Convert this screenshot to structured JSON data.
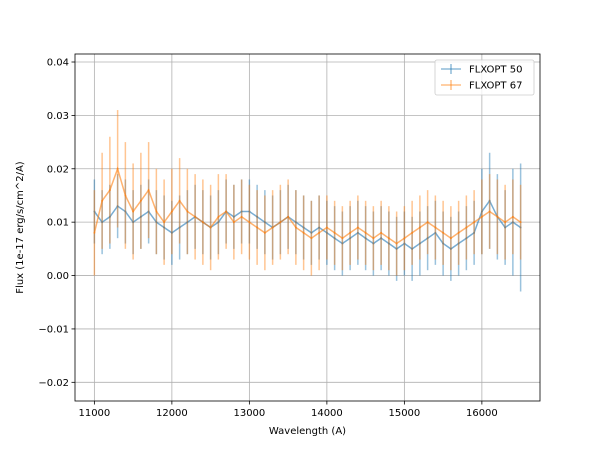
{
  "chart_data": {
    "type": "line",
    "title": "",
    "xlabel": "Wavelength (A)",
    "ylabel": "Flux (1e-17 erg/s/cm^2/A)",
    "xlim": [
      10750,
      16750
    ],
    "ylim": [
      -0.0235,
      0.0415
    ],
    "xticks": [
      11000,
      12000,
      13000,
      14000,
      15000,
      16000
    ],
    "yticks": [
      -0.02,
      -0.01,
      0.0,
      0.01,
      0.02,
      0.03,
      0.04
    ],
    "xtick_labels": [
      "11000",
      "12000",
      "13000",
      "14000",
      "15000",
      "16000"
    ],
    "ytick_labels": [
      "−0.02",
      "−0.01",
      "0.00",
      "0.01",
      "0.02",
      "0.03",
      "0.04"
    ],
    "grid": true,
    "legend_position": "top-right",
    "error_bars": true,
    "series": [
      {
        "name": "FLXOPT 50",
        "color": "#1f77b4",
        "x": [
          11000,
          11100,
          11200,
          11300,
          11400,
          11500,
          11600,
          11700,
          11800,
          11900,
          12000,
          12100,
          12200,
          12300,
          12400,
          12500,
          12600,
          12700,
          12800,
          12900,
          13000,
          13100,
          13200,
          13300,
          13400,
          13500,
          13600,
          13700,
          13800,
          13900,
          14000,
          14100,
          14200,
          14300,
          14400,
          14500,
          14600,
          14700,
          14800,
          14900,
          15000,
          15100,
          15200,
          15300,
          15400,
          15500,
          15600,
          15700,
          15800,
          15900,
          16000,
          16100,
          16200,
          16300,
          16400,
          16500
        ],
        "values": [
          0.012,
          0.01,
          0.011,
          0.013,
          0.012,
          0.01,
          0.011,
          0.012,
          0.01,
          0.009,
          0.008,
          0.009,
          0.01,
          0.011,
          0.01,
          0.009,
          0.01,
          0.012,
          0.011,
          0.012,
          0.012,
          0.011,
          0.01,
          0.009,
          0.01,
          0.011,
          0.01,
          0.009,
          0.008,
          0.009,
          0.008,
          0.007,
          0.006,
          0.007,
          0.008,
          0.007,
          0.006,
          0.007,
          0.006,
          0.005,
          0.006,
          0.005,
          0.006,
          0.007,
          0.008,
          0.006,
          0.005,
          0.006,
          0.007,
          0.008,
          0.012,
          0.014,
          0.011,
          0.009,
          0.01,
          0.009
        ],
        "errors": [
          0.006,
          0.006,
          0.006,
          0.006,
          0.006,
          0.006,
          0.006,
          0.006,
          0.006,
          0.006,
          0.006,
          0.006,
          0.006,
          0.006,
          0.006,
          0.006,
          0.006,
          0.006,
          0.006,
          0.006,
          0.006,
          0.006,
          0.006,
          0.006,
          0.006,
          0.006,
          0.006,
          0.006,
          0.006,
          0.006,
          0.006,
          0.006,
          0.006,
          0.006,
          0.006,
          0.006,
          0.006,
          0.006,
          0.006,
          0.006,
          0.006,
          0.006,
          0.006,
          0.006,
          0.006,
          0.006,
          0.006,
          0.006,
          0.006,
          0.006,
          0.008,
          0.009,
          0.008,
          0.007,
          0.01,
          0.012
        ]
      },
      {
        "name": "FLXOPT 67",
        "color": "#ff7f0e",
        "x": [
          11000,
          11100,
          11200,
          11300,
          11400,
          11500,
          11600,
          11700,
          11800,
          11900,
          12000,
          12100,
          12200,
          12300,
          12400,
          12500,
          12600,
          12700,
          12800,
          12900,
          13000,
          13100,
          13200,
          13300,
          13400,
          13500,
          13600,
          13700,
          13800,
          13900,
          14000,
          14100,
          14200,
          14300,
          14400,
          14500,
          14600,
          14700,
          14800,
          14900,
          15000,
          15100,
          15200,
          15300,
          15400,
          15500,
          15600,
          15700,
          15800,
          15900,
          16000,
          16100,
          16200,
          16300,
          16400,
          16500
        ],
        "values": [
          0.008,
          0.014,
          0.016,
          0.02,
          0.015,
          0.012,
          0.014,
          0.016,
          0.012,
          0.01,
          0.012,
          0.014,
          0.012,
          0.011,
          0.01,
          0.009,
          0.011,
          0.012,
          0.01,
          0.011,
          0.01,
          0.009,
          0.008,
          0.009,
          0.01,
          0.011,
          0.009,
          0.008,
          0.007,
          0.008,
          0.009,
          0.008,
          0.007,
          0.008,
          0.009,
          0.008,
          0.007,
          0.008,
          0.007,
          0.006,
          0.007,
          0.008,
          0.009,
          0.01,
          0.009,
          0.008,
          0.007,
          0.008,
          0.009,
          0.01,
          0.011,
          0.012,
          0.011,
          0.01,
          0.011,
          0.01
        ],
        "errors": [
          0.008,
          0.009,
          0.01,
          0.011,
          0.01,
          0.009,
          0.009,
          0.009,
          0.008,
          0.008,
          0.008,
          0.008,
          0.008,
          0.008,
          0.008,
          0.008,
          0.008,
          0.007,
          0.007,
          0.007,
          0.007,
          0.007,
          0.007,
          0.007,
          0.007,
          0.007,
          0.007,
          0.007,
          0.007,
          0.007,
          0.006,
          0.006,
          0.006,
          0.006,
          0.006,
          0.006,
          0.006,
          0.006,
          0.006,
          0.006,
          0.006,
          0.006,
          0.006,
          0.006,
          0.006,
          0.006,
          0.006,
          0.006,
          0.006,
          0.006,
          0.007,
          0.007,
          0.007,
          0.007,
          0.007,
          0.007
        ]
      }
    ]
  }
}
